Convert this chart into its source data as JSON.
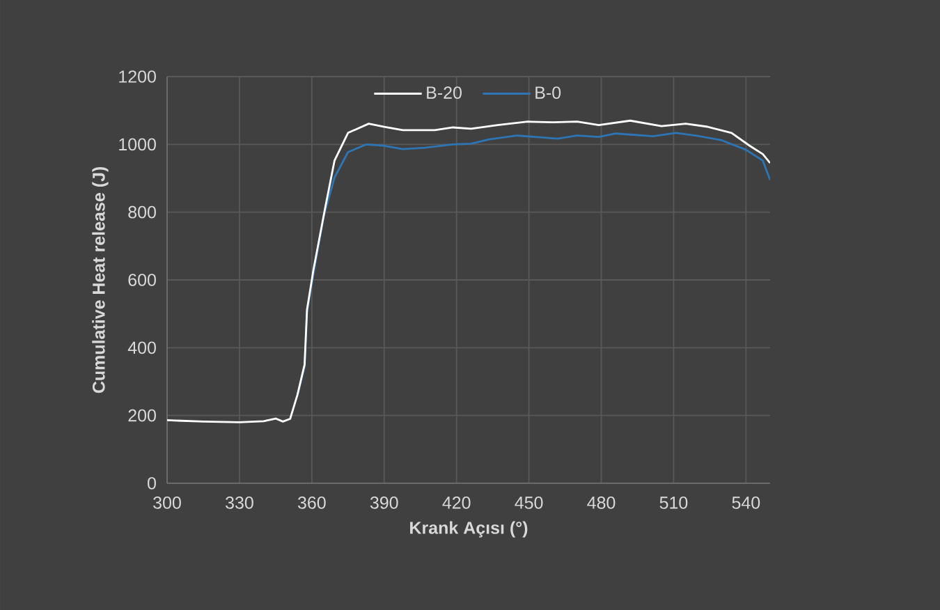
{
  "chart_data": {
    "type": "line",
    "xlabel": "Krank Açısı (°)",
    "ylabel": "Cumulative Heat release (J)",
    "xlim": [
      300,
      550
    ],
    "xticks": [
      300,
      330,
      360,
      390,
      420,
      450,
      480,
      510,
      540
    ],
    "ylim": [
      0,
      1200
    ],
    "yticks": [
      0,
      200,
      400,
      600,
      800,
      1000,
      1200
    ],
    "grid": true,
    "legend": "top",
    "line_style": "solid",
    "marker": "none",
    "series": [
      {
        "name": "B-20",
        "color": "#ffffff",
        "x": [
          300,
          315,
          330,
          340,
          345,
          348,
          351,
          354,
          357,
          358,
          360,
          360.6,
          365.6,
          369.4,
          375,
          383.6,
          390,
          397.7,
          411,
          418.5,
          426,
          437,
          449.5,
          460,
          470,
          479,
          492,
          505,
          515,
          524,
          534,
          541.5,
          547,
          550
        ],
        "values": [
          186,
          182,
          180,
          183,
          191,
          182,
          190,
          260,
          350,
          512,
          600,
          627,
          815,
          952,
          1034,
          1061,
          1052,
          1042,
          1042,
          1050,
          1046,
          1057,
          1067,
          1065,
          1067,
          1057,
          1070,
          1054,
          1061,
          1052,
          1034,
          996,
          971,
          945
        ]
      },
      {
        "name": "B-0",
        "color": "#2e75b6",
        "x": [
          354,
          357,
          358,
          360,
          360.6,
          365,
          369.4,
          375,
          382.7,
          390,
          397.7,
          407,
          418.5,
          426,
          433.6,
          445,
          462,
          470,
          479,
          486,
          501.5,
          511,
          520,
          530,
          540,
          547,
          550
        ],
        "values": [
          258,
          345,
          505,
          590,
          615,
          790,
          902,
          977,
          1000,
          996,
          986,
          990,
          1000,
          1002,
          1015,
          1026,
          1017,
          1026,
          1022,
          1032,
          1024,
          1034,
          1025,
          1012,
          984,
          952,
          895
        ]
      }
    ]
  }
}
